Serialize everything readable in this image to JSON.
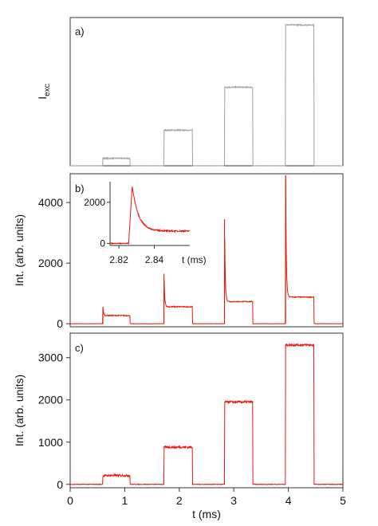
{
  "figure_title": "",
  "chart_data": [
    {
      "id": "a",
      "type": "line",
      "panel_label": "a)",
      "ylabel_main": "I",
      "ylabel_sub": "exc",
      "color": "#a0a0a0",
      "xlim": [
        0,
        5
      ],
      "ylim": [
        0,
        1.0
      ],
      "yticks": [],
      "grid": false,
      "noise": 0.004,
      "steps": [
        {
          "t_start": 0.6,
          "t_end": 1.1,
          "level": 0.05
        },
        {
          "t_start": 1.72,
          "t_end": 2.24,
          "level": 0.24
        },
        {
          "t_start": 2.83,
          "t_end": 3.35,
          "level": 0.53
        },
        {
          "t_start": 3.95,
          "t_end": 4.47,
          "level": 0.95
        }
      ]
    },
    {
      "id": "b",
      "type": "line",
      "panel_label": "b)",
      "ylabel": "Int. (arb. units)",
      "color": "#e8170d",
      "xlim": [
        0,
        5
      ],
      "ylim": [
        -100,
        4950
      ],
      "yticks": [
        0,
        2000,
        4000
      ],
      "grid": false,
      "noise": 15,
      "steps": [
        {
          "t_start": 0.6,
          "t_end": 1.1,
          "level": 270,
          "peak": 560
        },
        {
          "t_start": 1.72,
          "t_end": 2.24,
          "level": 560,
          "peak": 1650
        },
        {
          "t_start": 2.83,
          "t_end": 3.35,
          "level": 730,
          "peak": 3450
        },
        {
          "t_start": 3.95,
          "t_end": 4.47,
          "level": 880,
          "peak": 4900
        }
      ],
      "inset": {
        "type": "line",
        "xlabel": "t (ms)",
        "xlim": [
          2.815,
          2.86
        ],
        "ylim": [
          -100,
          3000
        ],
        "xticks": [
          2.82,
          2.84
        ],
        "yticks": [
          0,
          2000
        ],
        "onset_t": 2.8255,
        "peak_t": 2.8275,
        "peak": 2800,
        "level": 600,
        "color": "#e8170d"
      }
    },
    {
      "id": "c",
      "type": "line",
      "panel_label": "c)",
      "ylabel": "Int. (arb. units)",
      "xlabel": "t (ms)",
      "color": "#e8170d",
      "xlim": [
        0,
        5
      ],
      "ylim": [
        -80,
        3580
      ],
      "xticks": [
        0,
        1,
        2,
        3,
        4,
        5
      ],
      "yticks": [
        0,
        1000,
        2000,
        3000
      ],
      "grid": false,
      "noise": 25,
      "steps": [
        {
          "t_start": 0.6,
          "t_end": 1.1,
          "level": 210
        },
        {
          "t_start": 1.72,
          "t_end": 2.24,
          "level": 880
        },
        {
          "t_start": 2.83,
          "t_end": 3.35,
          "level": 1950
        },
        {
          "t_start": 3.95,
          "t_end": 4.47,
          "level": 3300
        }
      ]
    }
  ]
}
